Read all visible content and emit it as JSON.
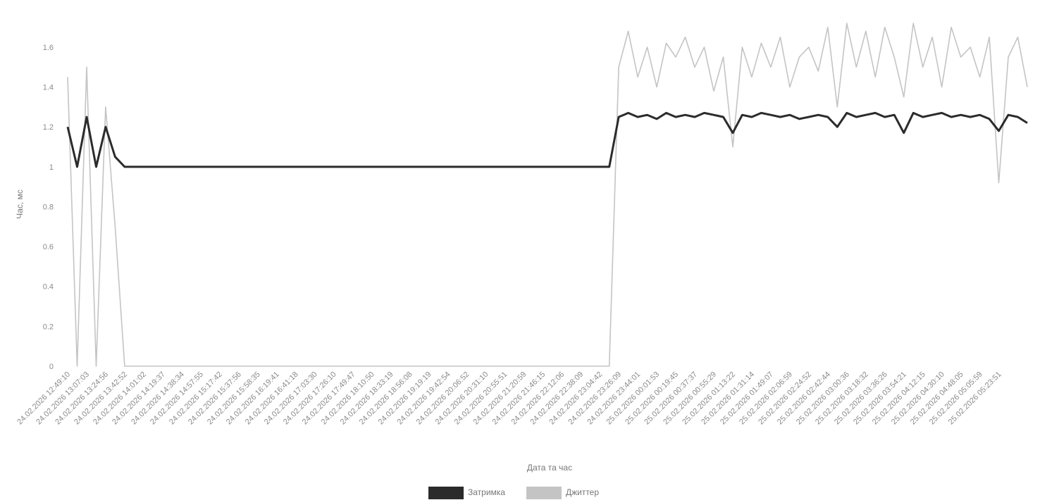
{
  "chart_data": {
    "type": "line",
    "y_label": "Час, мс",
    "x_label": "Дата та час",
    "ylim": [
      0,
      1.78
    ],
    "yticks": [
      0,
      0.2,
      0.4,
      0.6,
      0.8,
      1,
      1.2,
      1.4,
      1.6
    ],
    "grid": false,
    "legend": "bottom",
    "categories": [
      "24.02.2026 12:49:10",
      null,
      "24.02.2026 13:07:03",
      null,
      "24.02.2026 13:24:56",
      null,
      "24.02.2026 13:42:52",
      null,
      "24.02.2026 14:01:02",
      null,
      "24.02.2026 14:19:37",
      null,
      "24.02.2026 14:38:34",
      null,
      "24.02.2026 14:57:55",
      null,
      "24.02.2026 15:17:42",
      null,
      "24.02.2026 15:37:56",
      null,
      "24.02.2026 15:58:35",
      null,
      "24.02.2026 16:19:41",
      null,
      "24.02.2026 16:41:18",
      null,
      "24.02.2026 17:03:30",
      null,
      "24.02.2026 17:26:10",
      null,
      "24.02.2026 17:49:47",
      null,
      "24.02.2026 18:10:50",
      null,
      "24.02.2026 18:33:19",
      null,
      "24.02.2026 18:56:08",
      null,
      "24.02.2026 19:19:19",
      null,
      "24.02.2026 19:42:54",
      null,
      "24.02.2026 20:06:52",
      null,
      "24.02.2026 20:31:10",
      null,
      "24.02.2026 20:55:51",
      null,
      "24.02.2026 21:20:59",
      null,
      "24.02.2026 21:46:15",
      null,
      "24.02.2026 22:12:06",
      null,
      "24.02.2026 22:38:09",
      null,
      "24.02.2026 23:04:42",
      null,
      "24.02.2026 23:26:09",
      null,
      "24.02.2026 23:44:01",
      null,
      "25.02.2026 00:01:53",
      null,
      "25.02.2026 00:19:45",
      null,
      "25.02.2026 00:37:37",
      null,
      "25.02.2026 00:55:29",
      null,
      "25.02.2026 01:13:22",
      null,
      "25.02.2026 01:31:14",
      null,
      "25.02.2026 01:49:07",
      null,
      "25.02.2026 02:06:59",
      null,
      "25.02.2026 02:24:52",
      null,
      "25.02.2026 02:42:44",
      null,
      "25.02.2026 03:00:36",
      null,
      "25.02.2026 03:18:32",
      null,
      "25.02.2026 03:36:26",
      null,
      "25.02.2026 03:54:21",
      null,
      "25.02.2026 04:12:15",
      null,
      "25.02.2026 04:30:10",
      null,
      "25.02.2026 04:48:05",
      null,
      "25.02.2026 05:05:59",
      null,
      "25.02.2026 05:23:51",
      null,
      null,
      null
    ],
    "series": [
      {
        "name": "Затримка",
        "color": "#2b2b2b",
        "width": 3,
        "values": [
          1.2,
          1.0,
          1.25,
          1.0,
          1.2,
          1.05,
          1,
          1,
          1,
          1,
          1,
          1,
          1,
          1,
          1,
          1,
          1,
          1,
          1,
          1,
          1,
          1,
          1,
          1,
          1,
          1,
          1,
          1,
          1,
          1,
          1,
          1,
          1,
          1,
          1,
          1,
          1,
          1,
          1,
          1,
          1,
          1,
          1,
          1,
          1,
          1,
          1,
          1,
          1,
          1,
          1,
          1,
          1,
          1,
          1,
          1,
          1,
          1,
          1.25,
          1.27,
          1.25,
          1.26,
          1.24,
          1.27,
          1.25,
          1.26,
          1.25,
          1.27,
          1.26,
          1.25,
          1.17,
          1.26,
          1.25,
          1.27,
          1.26,
          1.25,
          1.26,
          1.24,
          1.25,
          1.26,
          1.25,
          1.2,
          1.27,
          1.25,
          1.26,
          1.27,
          1.25,
          1.26,
          1.17,
          1.27,
          1.25,
          1.26,
          1.27,
          1.25,
          1.26,
          1.25,
          1.26,
          1.24,
          1.18,
          1.26,
          1.25,
          1.22
        ]
      },
      {
        "name": "Джиттер",
        "color": "#c4c4c4",
        "width": 1.6,
        "values": [
          1.45,
          0,
          1.5,
          0,
          1.3,
          0.7,
          0,
          0,
          0,
          0,
          0,
          0,
          0,
          0,
          0,
          0,
          0,
          0,
          0,
          0,
          0,
          0,
          0,
          0,
          0,
          0,
          0,
          0,
          0,
          0,
          0,
          0,
          0,
          0,
          0,
          0,
          0,
          0,
          0,
          0,
          0,
          0,
          0,
          0,
          0,
          0,
          0,
          0,
          0,
          0,
          0,
          0,
          0,
          0,
          0,
          0,
          0,
          0,
          1.5,
          1.68,
          1.45,
          1.6,
          1.4,
          1.62,
          1.55,
          1.65,
          1.5,
          1.6,
          1.38,
          1.55,
          1.1,
          1.6,
          1.45,
          1.62,
          1.5,
          1.65,
          1.4,
          1.55,
          1.6,
          1.48,
          1.7,
          1.3,
          1.72,
          1.5,
          1.68,
          1.45,
          1.7,
          1.55,
          1.35,
          1.72,
          1.5,
          1.65,
          1.4,
          1.7,
          1.55,
          1.6,
          1.45,
          1.65,
          0.92,
          1.55,
          1.65,
          1.4
        ]
      }
    ]
  }
}
